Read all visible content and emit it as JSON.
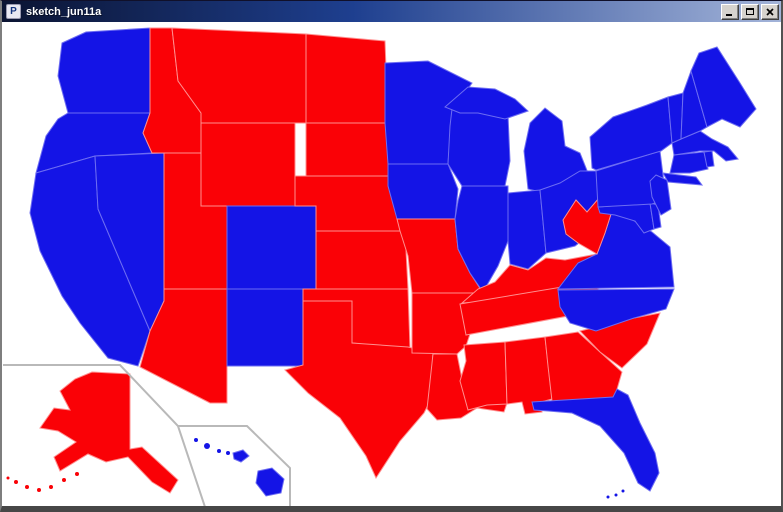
{
  "window": {
    "title": "sketch_jun11a",
    "controls": {
      "minimize": "minimize",
      "maximize": "maximize",
      "close": "close"
    }
  },
  "icon": {
    "letter": "P"
  },
  "colors": {
    "republican": "#fa0106",
    "democrat": "#1414e6",
    "republican_border": "#ff8f8f",
    "democrat_border": "#6d6df2",
    "canvas_background": "#ffffff",
    "inset_border": "#b9b9b9",
    "titlebar_gradient": [
      "#0b1432",
      "#1e3f8f",
      "#a3b4d9"
    ],
    "title_text": "#ffffff"
  },
  "map": {
    "insets": [
      "Alaska",
      "Hawaii"
    ],
    "states": [
      {
        "abbr": "WA",
        "name": "Washington",
        "party": "D"
      },
      {
        "abbr": "OR",
        "name": "Oregon",
        "party": "D"
      },
      {
        "abbr": "CA",
        "name": "California",
        "party": "D"
      },
      {
        "abbr": "NV",
        "name": "Nevada",
        "party": "D"
      },
      {
        "abbr": "ID",
        "name": "Idaho",
        "party": "R"
      },
      {
        "abbr": "MT",
        "name": "Montana",
        "party": "R"
      },
      {
        "abbr": "WY",
        "name": "Wyoming",
        "party": "R"
      },
      {
        "abbr": "UT",
        "name": "Utah",
        "party": "R"
      },
      {
        "abbr": "CO",
        "name": "Colorado",
        "party": "D"
      },
      {
        "abbr": "AZ",
        "name": "Arizona",
        "party": "R"
      },
      {
        "abbr": "NM",
        "name": "New Mexico",
        "party": "D"
      },
      {
        "abbr": "ND",
        "name": "North Dakota",
        "party": "R"
      },
      {
        "abbr": "SD",
        "name": "South Dakota",
        "party": "R"
      },
      {
        "abbr": "NE",
        "name": "Nebraska",
        "party": "R"
      },
      {
        "abbr": "KS",
        "name": "Kansas",
        "party": "R"
      },
      {
        "abbr": "OK",
        "name": "Oklahoma",
        "party": "R"
      },
      {
        "abbr": "TX",
        "name": "Texas",
        "party": "R"
      },
      {
        "abbr": "MN",
        "name": "Minnesota",
        "party": "D"
      },
      {
        "abbr": "IA",
        "name": "Iowa",
        "party": "D"
      },
      {
        "abbr": "MO",
        "name": "Missouri",
        "party": "R"
      },
      {
        "abbr": "AR",
        "name": "Arkansas",
        "party": "R"
      },
      {
        "abbr": "LA",
        "name": "Louisiana",
        "party": "R"
      },
      {
        "abbr": "WI",
        "name": "Wisconsin",
        "party": "D"
      },
      {
        "abbr": "IL",
        "name": "Illinois",
        "party": "D"
      },
      {
        "abbr": "MI",
        "name": "Michigan",
        "party": "D"
      },
      {
        "abbr": "IN",
        "name": "Indiana",
        "party": "D"
      },
      {
        "abbr": "OH",
        "name": "Ohio",
        "party": "D"
      },
      {
        "abbr": "KY",
        "name": "Kentucky",
        "party": "R"
      },
      {
        "abbr": "TN",
        "name": "Tennessee",
        "party": "R"
      },
      {
        "abbr": "MS",
        "name": "Mississippi",
        "party": "R"
      },
      {
        "abbr": "AL",
        "name": "Alabama",
        "party": "R"
      },
      {
        "abbr": "GA",
        "name": "Georgia",
        "party": "R"
      },
      {
        "abbr": "FL",
        "name": "Florida",
        "party": "D"
      },
      {
        "abbr": "SC",
        "name": "South Carolina",
        "party": "R"
      },
      {
        "abbr": "NC",
        "name": "North Carolina",
        "party": "D"
      },
      {
        "abbr": "VA",
        "name": "Virginia",
        "party": "D"
      },
      {
        "abbr": "WV",
        "name": "West Virginia",
        "party": "R"
      },
      {
        "abbr": "MD",
        "name": "Maryland",
        "party": "D"
      },
      {
        "abbr": "DE",
        "name": "Delaware",
        "party": "D"
      },
      {
        "abbr": "PA",
        "name": "Pennsylvania",
        "party": "D"
      },
      {
        "abbr": "NJ",
        "name": "New Jersey",
        "party": "D"
      },
      {
        "abbr": "NY",
        "name": "New York",
        "party": "D"
      },
      {
        "abbr": "CT",
        "name": "Connecticut",
        "party": "D"
      },
      {
        "abbr": "RI",
        "name": "Rhode Island",
        "party": "D"
      },
      {
        "abbr": "MA",
        "name": "Massachusetts",
        "party": "D"
      },
      {
        "abbr": "VT",
        "name": "Vermont",
        "party": "D"
      },
      {
        "abbr": "NH",
        "name": "New Hampshire",
        "party": "D"
      },
      {
        "abbr": "ME",
        "name": "Maine",
        "party": "D"
      },
      {
        "abbr": "AK",
        "name": "Alaska",
        "party": "R"
      },
      {
        "abbr": "HI",
        "name": "Hawaii",
        "party": "D"
      }
    ]
  }
}
